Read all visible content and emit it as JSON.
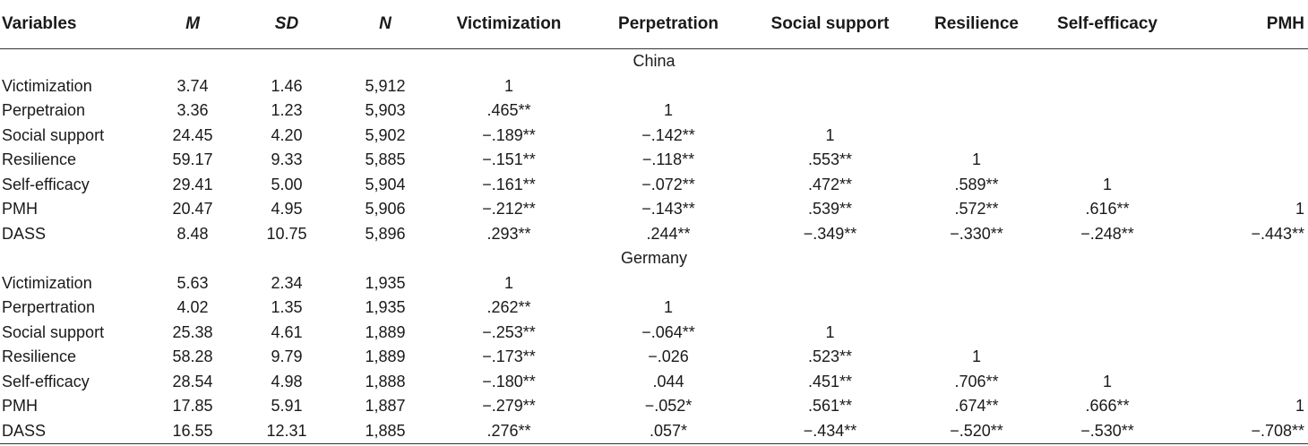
{
  "header": [
    "Variables",
    "M",
    "SD",
    "N",
    "Victimization",
    "Perpetration",
    "Social support",
    "Resilience",
    "Self-efficacy",
    "PMH"
  ],
  "groups": [
    {
      "name": "China",
      "rows": [
        [
          "Victimization",
          "3.74",
          "1.46",
          "5,912",
          "1",
          "",
          "",
          "",
          "",
          ""
        ],
        [
          "Perpetraion",
          "3.36",
          "1.23",
          "5,903",
          ".465**",
          "1",
          "",
          "",
          "",
          ""
        ],
        [
          "Social support",
          "24.45",
          "4.20",
          "5,902",
          "−.189**",
          "−.142**",
          "1",
          "",
          "",
          ""
        ],
        [
          "Resilience",
          "59.17",
          "9.33",
          "5,885",
          "−.151**",
          "−.118**",
          ".553**",
          "1",
          "",
          ""
        ],
        [
          "Self-efficacy",
          "29.41",
          "5.00",
          "5,904",
          "−.161**",
          "−.072**",
          ".472**",
          ".589**",
          "1",
          ""
        ],
        [
          "PMH",
          "20.47",
          "4.95",
          "5,906",
          "−.212**",
          "−.143**",
          ".539**",
          ".572**",
          ".616**",
          "1"
        ],
        [
          "DASS",
          "8.48",
          "10.75",
          "5,896",
          ".293**",
          ".244**",
          "−.349**",
          "−.330**",
          "−.248**",
          "−.443**"
        ]
      ]
    },
    {
      "name": "Germany",
      "rows": [
        [
          "Victimization",
          "5.63",
          "2.34",
          "1,935",
          "1",
          "",
          "",
          "",
          "",
          ""
        ],
        [
          "Perpertration",
          "4.02",
          "1.35",
          "1,935",
          ".262**",
          "1",
          "",
          "",
          "",
          ""
        ],
        [
          "Social support",
          "25.38",
          "4.61",
          "1,889",
          "−.253**",
          "−.064**",
          "1",
          "",
          "",
          ""
        ],
        [
          "Resilience",
          "58.28",
          "9.79",
          "1,889",
          "−.173**",
          "−.026",
          ".523**",
          "1",
          "",
          ""
        ],
        [
          "Self-efficacy",
          "28.54",
          "4.98",
          "1,888",
          "−.180**",
          ".044",
          ".451**",
          ".706**",
          "1",
          ""
        ],
        [
          "PMH",
          "17.85",
          "5.91",
          "1,887",
          "−.279**",
          "−.052*",
          ".561**",
          ".674**",
          ".666**",
          "1"
        ],
        [
          "DASS",
          "16.55",
          "12.31",
          "1,885",
          ".276**",
          ".057*",
          "−.434**",
          "−.520**",
          "−.530**",
          "−.708**"
        ]
      ]
    }
  ]
}
